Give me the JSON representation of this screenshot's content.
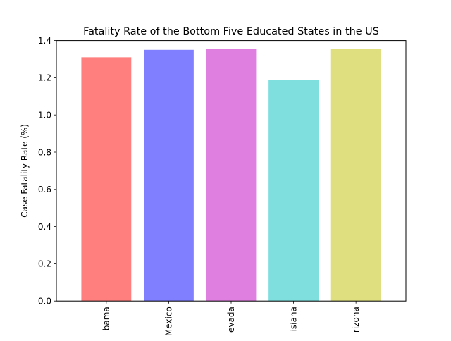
{
  "chart_data": {
    "type": "bar",
    "title": "Fatality Rate of the Bottom Five Educated States in the US",
    "xlabel": "",
    "ylabel": "Case Fatality Rate (%)",
    "categories": [
      "bama",
      "Mexico",
      "evada",
      "isiana",
      "rizona"
    ],
    "values": [
      1.31,
      1.35,
      1.355,
      1.19,
      1.355
    ],
    "bar_colors": [
      "#ff7f7f",
      "#7f7fff",
      "#df7fdf",
      "#7fdfdf",
      "#dfdf7f"
    ],
    "ylim": [
      0,
      1.4
    ],
    "yticks": [
      0.0,
      0.2,
      0.4,
      0.6,
      0.8,
      1.0,
      1.2,
      1.4
    ],
    "ytick_labels": [
      "0.0",
      "0.2",
      "0.4",
      "0.6",
      "0.8",
      "1.0",
      "1.2",
      "1.4"
    ],
    "grid": false,
    "legend": "none"
  }
}
